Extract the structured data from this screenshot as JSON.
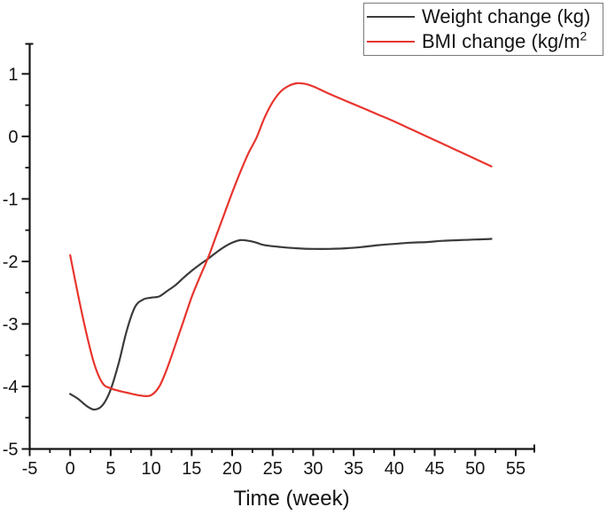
{
  "figure": {
    "background": "#ffffff",
    "text_color": "#141414"
  },
  "legend": {
    "items": [
      {
        "label": "Weight change (kg)",
        "sup": ""
      },
      {
        "label": "BMI change (kg/m",
        "sup": "2"
      }
    ]
  },
  "chart_data": {
    "type": "line",
    "title": "",
    "xlabel": "Time (week)",
    "ylabel": "",
    "xlim": [
      -5,
      57.3
    ],
    "ylim": [
      -5,
      1.48
    ],
    "x_ticks": [
      -5,
      0,
      5,
      10,
      15,
      20,
      25,
      30,
      35,
      40,
      45,
      50,
      55
    ],
    "y_ticks": [
      1,
      0,
      -1,
      -2,
      -3,
      -4,
      -5
    ],
    "grid": false,
    "legend_position": "top-right",
    "axis_color": "#141414",
    "series": [
      {
        "name": "Weight change (kg)",
        "slug": "weight-change",
        "color": "#3b3b3b",
        "points": [
          [
            0,
            -4.12
          ],
          [
            1,
            -4.2
          ],
          [
            2,
            -4.31
          ],
          [
            3,
            -4.37
          ],
          [
            4,
            -4.3
          ],
          [
            5,
            -4.05
          ],
          [
            6,
            -3.62
          ],
          [
            7,
            -3.1
          ],
          [
            8,
            -2.73
          ],
          [
            9,
            -2.61
          ],
          [
            10,
            -2.58
          ],
          [
            11,
            -2.56
          ],
          [
            12,
            -2.47
          ],
          [
            13,
            -2.38
          ],
          [
            14,
            -2.26
          ],
          [
            15,
            -2.15
          ],
          [
            16,
            -2.05
          ],
          [
            17,
            -1.96
          ],
          [
            18,
            -1.86
          ],
          [
            19,
            -1.77
          ],
          [
            20,
            -1.7
          ],
          [
            21,
            -1.66
          ],
          [
            22,
            -1.67
          ],
          [
            23,
            -1.7
          ],
          [
            24,
            -1.74
          ],
          [
            26,
            -1.77
          ],
          [
            28,
            -1.79
          ],
          [
            30,
            -1.8
          ],
          [
            32,
            -1.8
          ],
          [
            34,
            -1.79
          ],
          [
            36,
            -1.77
          ],
          [
            38,
            -1.74
          ],
          [
            40,
            -1.72
          ],
          [
            42,
            -1.7
          ],
          [
            44,
            -1.69
          ],
          [
            46,
            -1.67
          ],
          [
            48,
            -1.66
          ],
          [
            50,
            -1.65
          ],
          [
            52,
            -1.64
          ]
        ]
      },
      {
        "name": "BMI change (kg/m2)",
        "slug": "bmi-change",
        "color": "#e8352e",
        "points": [
          [
            0,
            -1.9
          ],
          [
            1,
            -2.55
          ],
          [
            2,
            -3.15
          ],
          [
            3,
            -3.65
          ],
          [
            4,
            -3.95
          ],
          [
            5,
            -4.03
          ],
          [
            6,
            -4.07
          ],
          [
            7,
            -4.1
          ],
          [
            8,
            -4.13
          ],
          [
            9,
            -4.15
          ],
          [
            10,
            -4.14
          ],
          [
            11,
            -4.0
          ],
          [
            12,
            -3.7
          ],
          [
            13,
            -3.33
          ],
          [
            14,
            -2.95
          ],
          [
            15,
            -2.57
          ],
          [
            16,
            -2.25
          ],
          [
            17,
            -1.95
          ],
          [
            18,
            -1.6
          ],
          [
            19,
            -1.25
          ],
          [
            20,
            -0.9
          ],
          [
            21,
            -0.57
          ],
          [
            22,
            -0.27
          ],
          [
            23,
            -0.02
          ],
          [
            24,
            0.3
          ],
          [
            25,
            0.55
          ],
          [
            26,
            0.72
          ],
          [
            27,
            0.81
          ],
          [
            28,
            0.85
          ],
          [
            29,
            0.84
          ],
          [
            30,
            0.8
          ],
          [
            32,
            0.68
          ],
          [
            34,
            0.57
          ],
          [
            36,
            0.46
          ],
          [
            38,
            0.35
          ],
          [
            40,
            0.24
          ],
          [
            42,
            0.12
          ],
          [
            44,
            0.0
          ],
          [
            46,
            -0.12
          ],
          [
            48,
            -0.24
          ],
          [
            50,
            -0.36
          ],
          [
            52,
            -0.48
          ]
        ]
      }
    ]
  }
}
